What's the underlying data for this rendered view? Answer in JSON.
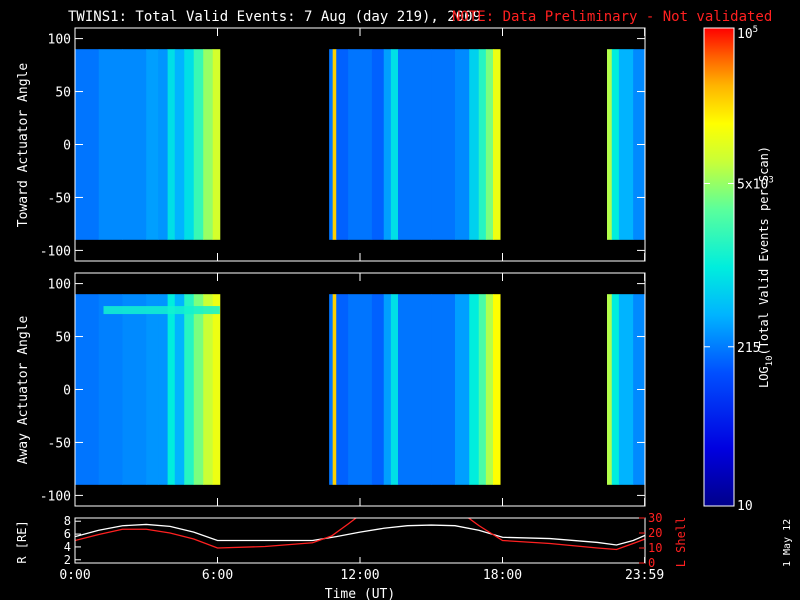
{
  "title": "TWINS1: Total Valid Events:  7 Aug (day 219), 2009",
  "note": "NOTE: Data Preliminary - Not validated",
  "side_stamp": "1 May 12",
  "colorbar": {
    "label": "LOG10(Total Valid Events per Scan)",
    "scale": "log",
    "range": [
      10,
      100000
    ],
    "ticks": [
      {
        "value": 100000,
        "label": "10^5"
      },
      {
        "value": 5000,
        "label": "5x10^3"
      },
      {
        "value": 215,
        "label": "215"
      },
      {
        "value": 10,
        "label": "10"
      }
    ]
  },
  "colors": {
    "background": "#000000",
    "axes": "#ffffff",
    "note_red": "#ff2020",
    "r_line": "#ffffff",
    "lshell_line": "#ff2020"
  },
  "chart_data": [
    {
      "type": "heatmap",
      "name": "toward",
      "ylabel": "Toward Actuator Angle",
      "xlim": [
        0,
        24
      ],
      "ylim": [
        -110,
        110
      ],
      "y_ticks": [
        100,
        50,
        0,
        -50,
        -100
      ],
      "angle_range": [
        -90,
        90
      ],
      "color_range_log10": [
        1,
        5
      ],
      "segments": [
        {
          "start": 0.0,
          "end": 6.1
        },
        {
          "start": 10.7,
          "end": 17.9
        },
        {
          "start": 22.4,
          "end": 24.0
        }
      ],
      "columns": [
        {
          "t": 0.0,
          "v": 2.3
        },
        {
          "t": 1.0,
          "v": 2.4
        },
        {
          "t": 2.0,
          "v": 2.4
        },
        {
          "t": 3.0,
          "v": 2.5
        },
        {
          "t": 3.5,
          "v": 2.45
        },
        {
          "t": 3.9,
          "v": 2.9
        },
        {
          "t": 4.2,
          "v": 2.6
        },
        {
          "t": 4.6,
          "v": 2.9
        },
        {
          "t": 5.0,
          "v": 3.3
        },
        {
          "t": 5.4,
          "v": 3.7
        },
        {
          "t": 5.8,
          "v": 3.95
        },
        {
          "t": 6.1,
          "v": 3.9
        },
        {
          "t": 10.7,
          "v": 2.3
        },
        {
          "t": 10.85,
          "v": 4.4
        },
        {
          "t": 11.0,
          "v": 2.2
        },
        {
          "t": 11.5,
          "v": 2.3
        },
        {
          "t": 12.5,
          "v": 2.2
        },
        {
          "t": 13.0,
          "v": 2.5
        },
        {
          "t": 13.3,
          "v": 2.9
        },
        {
          "t": 13.6,
          "v": 2.3
        },
        {
          "t": 15.0,
          "v": 2.3
        },
        {
          "t": 16.0,
          "v": 2.4
        },
        {
          "t": 16.6,
          "v": 2.8
        },
        {
          "t": 17.0,
          "v": 3.2
        },
        {
          "t": 17.3,
          "v": 3.6
        },
        {
          "t": 17.6,
          "v": 4.1
        },
        {
          "t": 17.9,
          "v": 4.3
        },
        {
          "t": 22.4,
          "v": 3.8
        },
        {
          "t": 22.6,
          "v": 3.0
        },
        {
          "t": 22.9,
          "v": 2.6
        },
        {
          "t": 23.5,
          "v": 2.4
        },
        {
          "t": 24.0,
          "v": 2.4
        }
      ]
    },
    {
      "type": "heatmap",
      "name": "away",
      "ylabel": "Away Actuator Angle",
      "xlim": [
        0,
        24
      ],
      "ylim": [
        -110,
        110
      ],
      "y_ticks": [
        100,
        50,
        0,
        -50,
        -100
      ],
      "angle_range": [
        -90,
        90
      ],
      "color_range_log10": [
        1,
        5
      ],
      "segments": [
        {
          "start": 0.0,
          "end": 6.1
        },
        {
          "start": 10.7,
          "end": 17.9
        },
        {
          "start": 22.4,
          "end": 24.0
        }
      ],
      "columns": [
        {
          "t": 0.0,
          "v": 2.3
        },
        {
          "t": 1.0,
          "v": 2.35
        },
        {
          "t": 2.0,
          "v": 2.4
        },
        {
          "t": 3.0,
          "v": 2.45
        },
        {
          "t": 3.5,
          "v": 2.45
        },
        {
          "t": 3.9,
          "v": 3.0
        },
        {
          "t": 4.2,
          "v": 2.6
        },
        {
          "t": 4.6,
          "v": 3.2
        },
        {
          "t": 5.0,
          "v": 3.6
        },
        {
          "t": 5.4,
          "v": 3.9
        },
        {
          "t": 5.8,
          "v": 4.1
        },
        {
          "t": 6.1,
          "v": 4.0
        },
        {
          "t": 10.7,
          "v": 2.3
        },
        {
          "t": 10.85,
          "v": 4.4
        },
        {
          "t": 11.0,
          "v": 2.2
        },
        {
          "t": 11.5,
          "v": 2.3
        },
        {
          "t": 12.5,
          "v": 2.2
        },
        {
          "t": 13.0,
          "v": 2.5
        },
        {
          "t": 13.3,
          "v": 2.9
        },
        {
          "t": 13.6,
          "v": 2.3
        },
        {
          "t": 15.0,
          "v": 2.3
        },
        {
          "t": 16.0,
          "v": 2.5
        },
        {
          "t": 16.6,
          "v": 3.0
        },
        {
          "t": 17.0,
          "v": 3.4
        },
        {
          "t": 17.3,
          "v": 3.8
        },
        {
          "t": 17.6,
          "v": 4.2
        },
        {
          "t": 17.9,
          "v": 4.4
        },
        {
          "t": 22.4,
          "v": 3.8
        },
        {
          "t": 22.6,
          "v": 3.0
        },
        {
          "t": 22.9,
          "v": 2.6
        },
        {
          "t": 23.5,
          "v": 2.4
        },
        {
          "t": 24.0,
          "v": 2.4
        }
      ],
      "band": {
        "start": 1.2,
        "end": 6.1,
        "angle": 75,
        "v": 3.1
      }
    },
    {
      "type": "line",
      "name": "orbit",
      "xlabel": "Time (UT)",
      "ylabel": "R [RE]",
      "ylabel_right": "L Shell",
      "xlim": [
        0,
        24
      ],
      "ylim": [
        1.5,
        8.5
      ],
      "ylim_right": [
        0,
        30
      ],
      "x_ticks": [
        {
          "t": 0,
          "label": "0:00"
        },
        {
          "t": 6,
          "label": "6:00"
        },
        {
          "t": 12,
          "label": "12:00"
        },
        {
          "t": 18,
          "label": "18:00"
        },
        {
          "t": 23.983,
          "label": "23:59"
        }
      ],
      "y_ticks": [
        2,
        4,
        6,
        8
      ],
      "y_ticks_right": [
        0,
        10,
        20,
        30
      ],
      "series": [
        {
          "name": "R [RE]",
          "axis": "left",
          "x": [
            0,
            1,
            2,
            3,
            4,
            5,
            6,
            8,
            10,
            11,
            12,
            13,
            14,
            15,
            16,
            17,
            18,
            20,
            22,
            22.8,
            23.5,
            24
          ],
          "y": [
            5.6,
            6.6,
            7.3,
            7.5,
            7.2,
            6.3,
            5.0,
            5.0,
            5.0,
            5.6,
            6.3,
            6.9,
            7.3,
            7.4,
            7.3,
            6.6,
            5.5,
            5.3,
            4.7,
            4.3,
            5.0,
            5.8
          ]
        },
        {
          "name": "L Shell",
          "axis": "right",
          "x": [
            0,
            1,
            2,
            3,
            4,
            5,
            6,
            8,
            10,
            10.8,
            11.5,
            12,
            13,
            15,
            16.4,
            17,
            18,
            20,
            22,
            22.8,
            23.5,
            24
          ],
          "y": [
            15,
            19,
            22.5,
            22.5,
            20,
            16,
            10,
            11,
            13.5,
            18,
            26,
            32,
            32,
            32,
            32,
            25,
            15,
            13,
            10,
            9,
            13,
            16
          ]
        }
      ]
    }
  ]
}
